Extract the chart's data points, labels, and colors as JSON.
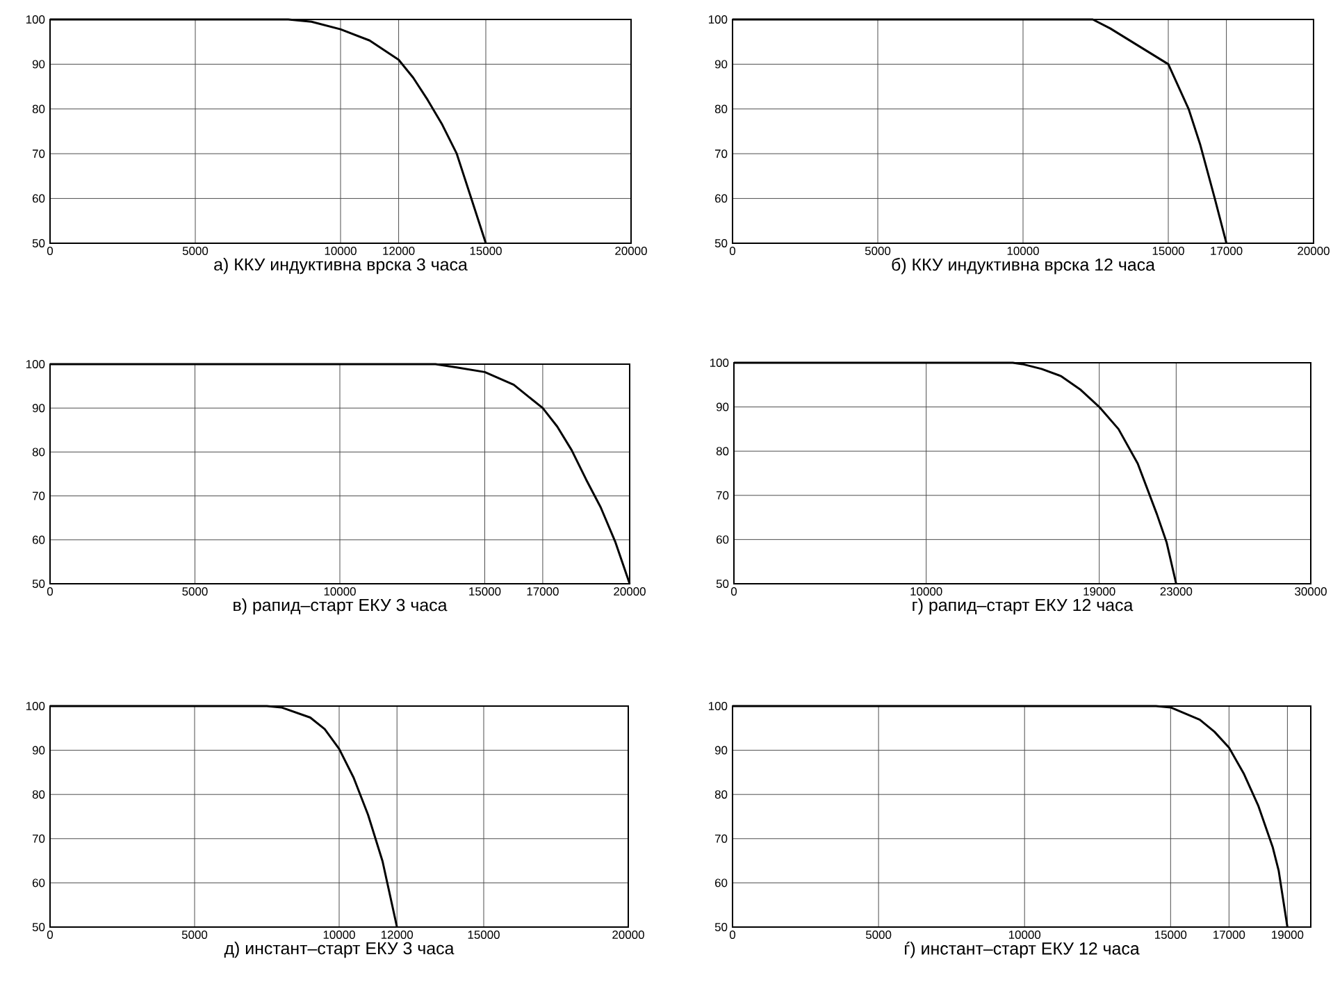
{
  "chart_data": [
    {
      "type": "line",
      "title": "а) ККУ индуктивна врска 3 часа",
      "color": "#000000",
      "grid": true,
      "xlim": [
        0,
        20000
      ],
      "ylim": [
        50,
        100
      ],
      "xticks": [
        0,
        5000,
        10000,
        12000,
        15000,
        20000
      ],
      "yticks": [
        50,
        60,
        70,
        80,
        90,
        100
      ],
      "x": [
        0,
        8200,
        9000,
        10000,
        11000,
        12000,
        12500,
        13000,
        13500,
        14000,
        14500,
        15000
      ],
      "values": [
        100,
        100,
        99.5,
        97.8,
        95.3,
        91,
        87,
        82,
        76.5,
        70,
        60,
        50
      ]
    },
    {
      "type": "line",
      "title": "б) ККУ индуктивна врска 12 часа",
      "color": "#000000",
      "grid": true,
      "xlim": [
        0,
        20000
      ],
      "ylim": [
        50,
        100
      ],
      "xticks": [
        0,
        5000,
        10000,
        15000,
        17000,
        20000
      ],
      "yticks": [
        50,
        60,
        70,
        80,
        90,
        100
      ],
      "x": [
        0,
        11500,
        12400,
        13000,
        14000,
        15000,
        15700,
        16100,
        16600,
        17000
      ],
      "values": [
        100,
        100,
        100,
        98,
        94,
        90,
        80,
        72,
        60,
        50
      ]
    },
    {
      "type": "line",
      "title": "в) рапид–старт ЕКУ 3 часа",
      "color": "#000000",
      "grid": true,
      "xlim": [
        0,
        20000
      ],
      "ylim": [
        50,
        100
      ],
      "xticks": [
        0,
        5000,
        10000,
        15000,
        17000,
        20000
      ],
      "yticks": [
        50,
        60,
        70,
        80,
        90,
        100
      ],
      "x": [
        0,
        13300,
        14000,
        15000,
        16000,
        17000,
        17500,
        18000,
        18500,
        19000,
        19500,
        20000
      ],
      "values": [
        100,
        100,
        99.3,
        98.2,
        95.3,
        90,
        85.8,
        80.4,
        73.7,
        67.4,
        59.6,
        50
      ]
    },
    {
      "type": "line",
      "title": "г) рапид–старт ЕКУ 12 часа",
      "color": "#000000",
      "grid": true,
      "xlim": [
        0,
        30000
      ],
      "ylim": [
        50,
        100
      ],
      "xticks": [
        0,
        10000,
        19000,
        23000,
        30000
      ],
      "yticks": [
        50,
        60,
        70,
        80,
        90,
        100
      ],
      "x": [
        0,
        14500,
        15000,
        16000,
        17000,
        18000,
        19000,
        20000,
        21000,
        22000,
        22500,
        23000
      ],
      "values": [
        100,
        100,
        99.7,
        98.6,
        97,
        94,
        90,
        85,
        77.2,
        65.7,
        59.4,
        50
      ]
    },
    {
      "type": "line",
      "title": "д) инстант–старт ЕКУ 3 часа",
      "color": "#000000",
      "grid": true,
      "xlim": [
        0,
        20000
      ],
      "ylim": [
        50,
        100
      ],
      "xticks": [
        0,
        5000,
        10000,
        12000,
        15000,
        20000
      ],
      "yticks": [
        50,
        60,
        70,
        80,
        90,
        100
      ],
      "x": [
        0,
        7500,
        8000,
        9000,
        9500,
        10000,
        10500,
        11000,
        11500,
        12000
      ],
      "values": [
        100,
        100,
        99.7,
        97.4,
        94.8,
        90.3,
        83.8,
        75.4,
        64.9,
        50
      ]
    },
    {
      "type": "line",
      "title": "ѓ) инстант–старт ЕКУ 12 часа",
      "color": "#000000",
      "grid": true,
      "xlim": [
        0,
        19800
      ],
      "ylim": [
        50,
        100
      ],
      "xticks": [
        0,
        5000,
        10000,
        15000,
        17000,
        19000
      ],
      "yticks": [
        50,
        60,
        70,
        80,
        90,
        100
      ],
      "x": [
        0,
        14500,
        15000,
        16000,
        16500,
        17000,
        17500,
        18000,
        18500,
        18700,
        19000
      ],
      "values": [
        100,
        100,
        99.7,
        96.9,
        94.2,
        90.6,
        84.8,
        77.5,
        68,
        62.8,
        50
      ]
    }
  ]
}
